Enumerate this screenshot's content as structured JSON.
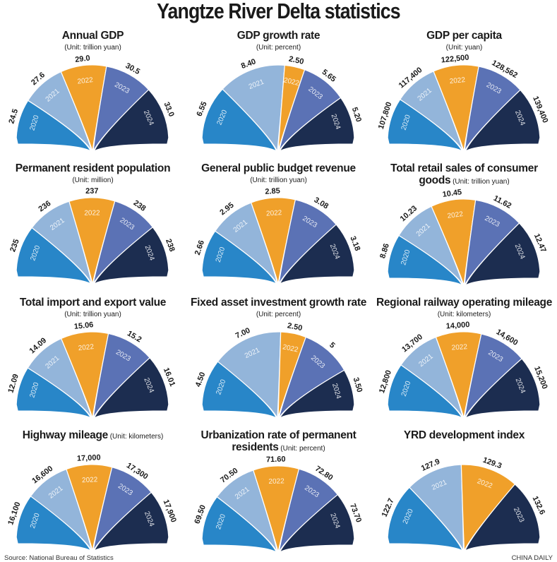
{
  "title": "Yangtze River Delta statistics",
  "source": "Source: National Bureau of Statistics",
  "credit": "CHINA DAILY",
  "colors": {
    "2020": "#2886c8",
    "2021": "#93b5da",
    "2022": "#f0a02a",
    "2023": "#5b72b5",
    "2024": "#1c2d50"
  },
  "chart_data": [
    {
      "type": "pie",
      "title": "Annual GDP",
      "unit": "(Unit: trillion yuan)",
      "unit_inline": false,
      "categories": [
        "2020",
        "2021",
        "2022",
        "2023",
        "2024"
      ],
      "labels": [
        "24.5",
        "27.6",
        "29.0",
        "30.5",
        "33.0"
      ],
      "values": [
        24.5,
        27.6,
        29.0,
        30.5,
        33.0
      ]
    },
    {
      "type": "pie",
      "title": "GDP growth rate",
      "unit": "(Unit: percent)",
      "unit_inline": false,
      "categories": [
        "2020",
        "2021",
        "2022",
        "2023",
        "2024"
      ],
      "labels": [
        "6.55",
        "8.40",
        "2.50",
        "5.65",
        "5.20"
      ],
      "values": [
        6.55,
        8.4,
        2.5,
        5.65,
        5.2
      ]
    },
    {
      "type": "pie",
      "title": "GDP per capita",
      "unit": "(Unit: yuan)",
      "unit_inline": false,
      "categories": [
        "2020",
        "2021",
        "2022",
        "2023",
        "2024"
      ],
      "labels": [
        "107,800",
        "117,400",
        "122,500",
        "128,562",
        "139,400"
      ],
      "values": [
        107800,
        117400,
        122500,
        128562,
        139400
      ]
    },
    {
      "type": "pie",
      "title": "Permanent resident population",
      "unit": "(Unit: million)",
      "unit_inline": false,
      "categories": [
        "2020",
        "2021",
        "2022",
        "2023",
        "2024"
      ],
      "labels": [
        "235",
        "236",
        "237",
        "238",
        "238"
      ],
      "values": [
        235,
        236,
        237,
        238,
        238
      ]
    },
    {
      "type": "pie",
      "title": "General public budget revenue",
      "unit": "(Unit: trillion yuan)",
      "unit_inline": false,
      "categories": [
        "2020",
        "2021",
        "2022",
        "2023",
        "2024"
      ],
      "labels": [
        "2.66",
        "2.95",
        "2.85",
        "3.08",
        "3.18"
      ],
      "values": [
        2.66,
        2.95,
        2.85,
        3.08,
        3.18
      ]
    },
    {
      "type": "pie",
      "title": "Total retail sales of consumer",
      "title2": "goods",
      "unit": "(Unit: trillion yuan)",
      "unit_inline": true,
      "categories": [
        "2020",
        "2021",
        "2022",
        "2023",
        "2024"
      ],
      "labels": [
        "8.86",
        "10.23",
        "10.45",
        "11.62",
        "12.47"
      ],
      "values": [
        8.86,
        10.23,
        10.45,
        11.62,
        12.47
      ]
    },
    {
      "type": "pie",
      "title": "Total import and export value",
      "unit": "(Unit: trillion yuan)",
      "unit_inline": false,
      "categories": [
        "2020",
        "2021",
        "2022",
        "2023",
        "2024"
      ],
      "labels": [
        "12.09",
        "14.09",
        "15.06",
        "15.2",
        "16.01"
      ],
      "values": [
        12.09,
        14.09,
        15.06,
        15.2,
        16.01
      ]
    },
    {
      "type": "pie",
      "title": "Fixed asset investment growth rate",
      "unit": "(Unit: percent)",
      "unit_inline": false,
      "categories": [
        "2020",
        "2021",
        "2022",
        "2023",
        "2024"
      ],
      "labels": [
        "4.50",
        "7.00",
        "2.50",
        "5",
        "3.50"
      ],
      "values": [
        4.5,
        7.0,
        2.5,
        5,
        3.5
      ]
    },
    {
      "type": "pie",
      "title": "Regional railway operating mileage",
      "unit": "(Unit: kilometers)",
      "unit_inline": false,
      "categories": [
        "2020",
        "2021",
        "2022",
        "2023",
        "2024"
      ],
      "labels": [
        "12,800",
        "13,700",
        "14,000",
        "14,600",
        "15,200"
      ],
      "values": [
        12800,
        13700,
        14000,
        14600,
        15200
      ]
    },
    {
      "type": "pie",
      "title": "Highway mileage",
      "unit": "(Unit: kilometers)",
      "unit_inline": true,
      "categories": [
        "2020",
        "2021",
        "2022",
        "2023",
        "2024"
      ],
      "labels": [
        "16,100",
        "16,600",
        "17,000",
        "17,300",
        "17,900"
      ],
      "values": [
        16100,
        16600,
        17000,
        17300,
        17900
      ]
    },
    {
      "type": "pie",
      "title": "Urbanization rate of permanent",
      "title2": "residents",
      "unit": "(Unit: percent)",
      "unit_inline": true,
      "categories": [
        "2020",
        "2021",
        "2022",
        "2023",
        "2024"
      ],
      "labels": [
        "69.50",
        "70.50",
        "71.60",
        "72.80",
        "73.70"
      ],
      "values": [
        69.5,
        70.5,
        71.6,
        72.8,
        73.7
      ]
    },
    {
      "type": "pie",
      "title": "YRD development index",
      "unit": "",
      "unit_inline": false,
      "categories": [
        "2020",
        "2021",
        "2022",
        "2023"
      ],
      "labels": [
        "122.7",
        "127.9",
        "129.3",
        "132.6"
      ],
      "values": [
        122.7,
        127.9,
        129.3,
        132.6
      ],
      "category_colors": [
        "2020",
        "2021",
        "2022",
        "2024"
      ]
    }
  ]
}
